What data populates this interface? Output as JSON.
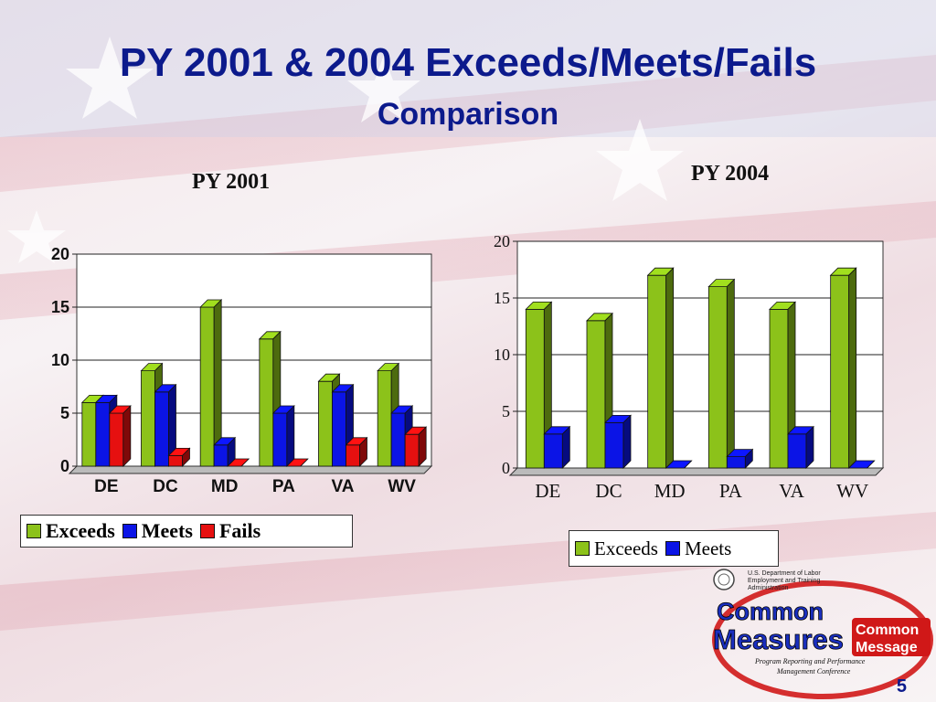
{
  "slide": {
    "title_line1": "PY 2001 & 2004 Exceeds/Meets/Fails",
    "title_line2": "Comparison",
    "page_number": "5"
  },
  "colors": {
    "exceeds": "#8cc21a",
    "meets": "#0b14e6",
    "fails": "#e61010",
    "title": "#0c1a8c"
  },
  "chart_data": [
    {
      "type": "bar",
      "title": "PY 2001",
      "categories": [
        "DE",
        "DC",
        "MD",
        "PA",
        "VA",
        "WV"
      ],
      "series": [
        {
          "name": "Exceeds",
          "values": [
            6,
            9,
            15,
            12,
            8,
            9
          ]
        },
        {
          "name": "Meets",
          "values": [
            6,
            7,
            2,
            5,
            7,
            5
          ]
        },
        {
          "name": "Fails",
          "values": [
            5,
            1,
            0,
            0,
            2,
            3
          ]
        }
      ],
      "ylim": [
        0,
        20
      ],
      "yticks": [
        "0",
        "5",
        "10",
        "15",
        "20"
      ],
      "grid": true,
      "legend_position": "bottom"
    },
    {
      "type": "bar",
      "title": "PY 2004",
      "categories": [
        "DE",
        "DC",
        "MD",
        "PA",
        "VA",
        "WV"
      ],
      "series": [
        {
          "name": "Exceeds",
          "values": [
            14,
            13,
            17,
            16,
            14,
            17
          ]
        },
        {
          "name": "Meets",
          "values": [
            3,
            4,
            0,
            1,
            3,
            0
          ]
        }
      ],
      "ylim": [
        0,
        20
      ],
      "yticks": [
        "0",
        "5",
        "10",
        "15",
        "20"
      ],
      "grid": true,
      "legend_position": "bottom"
    }
  ],
  "logo": {
    "dol_line1": "U.S. Department of Labor",
    "dol_line2": "Employment and Training",
    "dol_line3": "Administration",
    "main_line1": "Common",
    "main_line2": "Measures",
    "side_line1": "Common",
    "side_line2": "Message",
    "sub_line1": "Program Reporting and Performance",
    "sub_line2": "Management Conference"
  }
}
